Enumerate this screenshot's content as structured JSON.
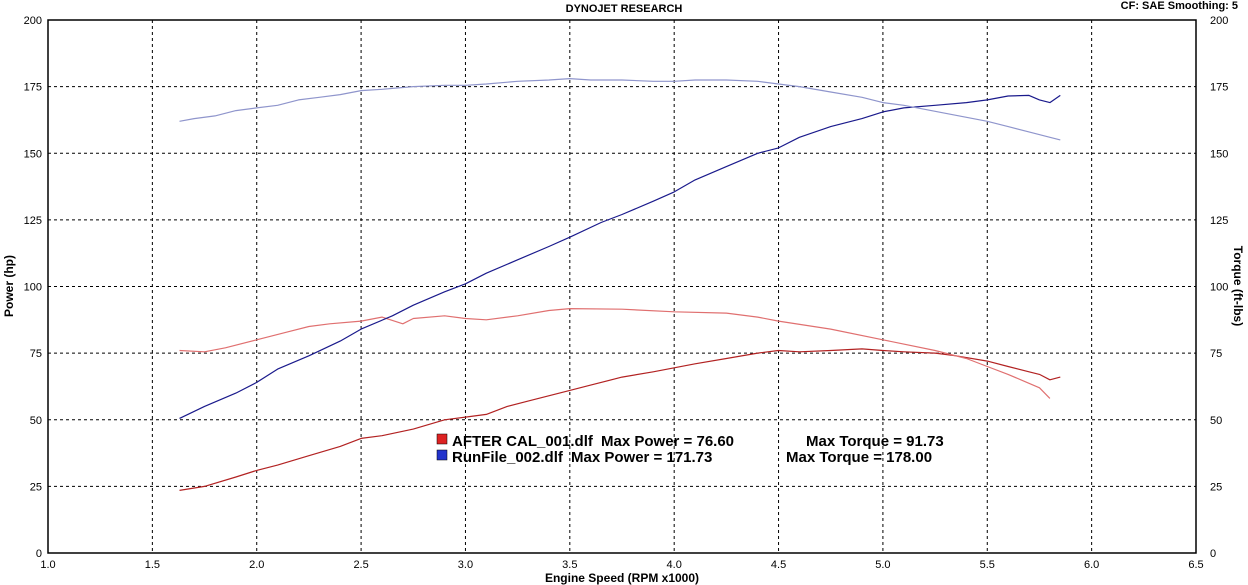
{
  "header": {
    "title": "DYNOJET RESEARCH",
    "cf_info": "CF: SAE  Smoothing: 5"
  },
  "chart_data": {
    "type": "line",
    "title": "DYNOJET RESEARCH",
    "xlabel": "Engine Speed (RPM x1000)",
    "ylabel_left": "Power (hp)",
    "ylabel_right": "Torque (ft-lbs)",
    "xlim": [
      1.0,
      6.5
    ],
    "ylim": [
      0,
      200
    ],
    "x_ticks": [
      "1.0",
      "1.5",
      "2.0",
      "2.5",
      "3.0",
      "3.5",
      "4.0",
      "4.5",
      "5.0",
      "5.5",
      "6.0",
      "6.5"
    ],
    "y_ticks": [
      "0",
      "25",
      "50",
      "75",
      "100",
      "125",
      "150",
      "175",
      "200"
    ],
    "grid": true,
    "legend": [
      {
        "swatch_color": "#dd2222",
        "file": "AFTER CAL_001.dlf",
        "max_power_label": "Max Power = 76.60",
        "max_torque_label": "Max Torque = 91.73"
      },
      {
        "swatch_color": "#2233cc",
        "file": "RunFile_002.dlf",
        "max_power_label": "Max Power = 171.73",
        "max_torque_label": "Max Torque = 178.00"
      }
    ],
    "series": [
      {
        "name": "AFTER CAL_001.dlf",
        "measure": "Power",
        "color": "#b22222",
        "x": [
          1.63,
          1.75,
          1.9,
          2.0,
          2.1,
          2.25,
          2.4,
          2.5,
          2.6,
          2.75,
          2.9,
          3.0,
          3.1,
          3.2,
          3.3,
          3.5,
          3.6,
          3.75,
          3.9,
          4.0,
          4.1,
          4.25,
          4.4,
          4.5,
          4.6,
          4.75,
          4.9,
          5.0,
          5.1,
          5.25,
          5.35,
          5.5,
          5.6,
          5.7,
          5.75,
          5.8,
          5.85
        ],
        "y": [
          23.5,
          25,
          28.5,
          31,
          33,
          36.5,
          40,
          43,
          44,
          46.5,
          50,
          51,
          52,
          55,
          57,
          61,
          63,
          66,
          68,
          69.5,
          71,
          73,
          75,
          76,
          75.5,
          76,
          76.6,
          76,
          75.5,
          75,
          74,
          72,
          70,
          68,
          67,
          65,
          66
        ]
      },
      {
        "name": "AFTER CAL_001.dlf",
        "measure": "Torque",
        "color": "#e07070",
        "x": [
          1.63,
          1.75,
          1.85,
          2.0,
          2.15,
          2.25,
          2.35,
          2.5,
          2.6,
          2.7,
          2.75,
          2.9,
          3.0,
          3.1,
          3.25,
          3.4,
          3.5,
          3.75,
          4.0,
          4.25,
          4.4,
          4.5,
          4.75,
          5.0,
          5.25,
          5.4,
          5.5,
          5.6,
          5.75,
          5.8
        ],
        "y": [
          76,
          75.5,
          77,
          80,
          83,
          85,
          86,
          87,
          88.5,
          86,
          88,
          89,
          88,
          87.5,
          89,
          91,
          91.7,
          91.5,
          90.5,
          90,
          88.5,
          87,
          84,
          80,
          76,
          73,
          70,
          67,
          62,
          58
        ]
      },
      {
        "name": "RunFile_002.dlf",
        "measure": "Power",
        "color": "#1a1a8c",
        "x": [
          1.63,
          1.75,
          1.9,
          2.0,
          2.1,
          2.25,
          2.4,
          2.5,
          2.65,
          2.75,
          2.9,
          3.0,
          3.1,
          3.25,
          3.4,
          3.5,
          3.65,
          3.75,
          3.9,
          4.0,
          4.1,
          4.25,
          4.4,
          4.5,
          4.6,
          4.75,
          4.9,
          5.0,
          5.1,
          5.25,
          5.4,
          5.5,
          5.6,
          5.7,
          5.75,
          5.8,
          5.85
        ],
        "y": [
          50.5,
          55,
          60,
          64,
          69,
          74,
          79.5,
          84,
          89,
          93,
          98,
          101,
          105,
          110,
          115,
          118.5,
          124,
          127,
          132,
          135.5,
          140,
          145,
          150,
          152,
          156,
          160,
          163,
          165.5,
          167,
          168,
          169,
          170,
          171.5,
          171.7,
          170,
          169,
          171.7
        ]
      },
      {
        "name": "RunFile_002.dlf",
        "measure": "Torque",
        "color": "#8f95cc",
        "x": [
          1.63,
          1.7,
          1.8,
          1.9,
          2.0,
          2.1,
          2.2,
          2.3,
          2.4,
          2.5,
          2.6,
          2.75,
          2.9,
          3.0,
          3.1,
          3.25,
          3.4,
          3.5,
          3.6,
          3.75,
          3.9,
          4.0,
          4.1,
          4.25,
          4.4,
          4.5,
          4.6,
          4.75,
          4.9,
          5.0,
          5.1,
          5.2,
          5.3,
          5.4,
          5.5,
          5.6,
          5.7,
          5.8,
          5.85
        ],
        "y": [
          162,
          163,
          164,
          166,
          167,
          168,
          170,
          171,
          172,
          173.5,
          174,
          175,
          175.5,
          175.5,
          176,
          177,
          177.5,
          178,
          177.5,
          177.5,
          177,
          177,
          177.5,
          177.5,
          177,
          176,
          175,
          173,
          171,
          169,
          168,
          166.5,
          165,
          163.5,
          162,
          160,
          158,
          156,
          155
        ]
      }
    ]
  }
}
